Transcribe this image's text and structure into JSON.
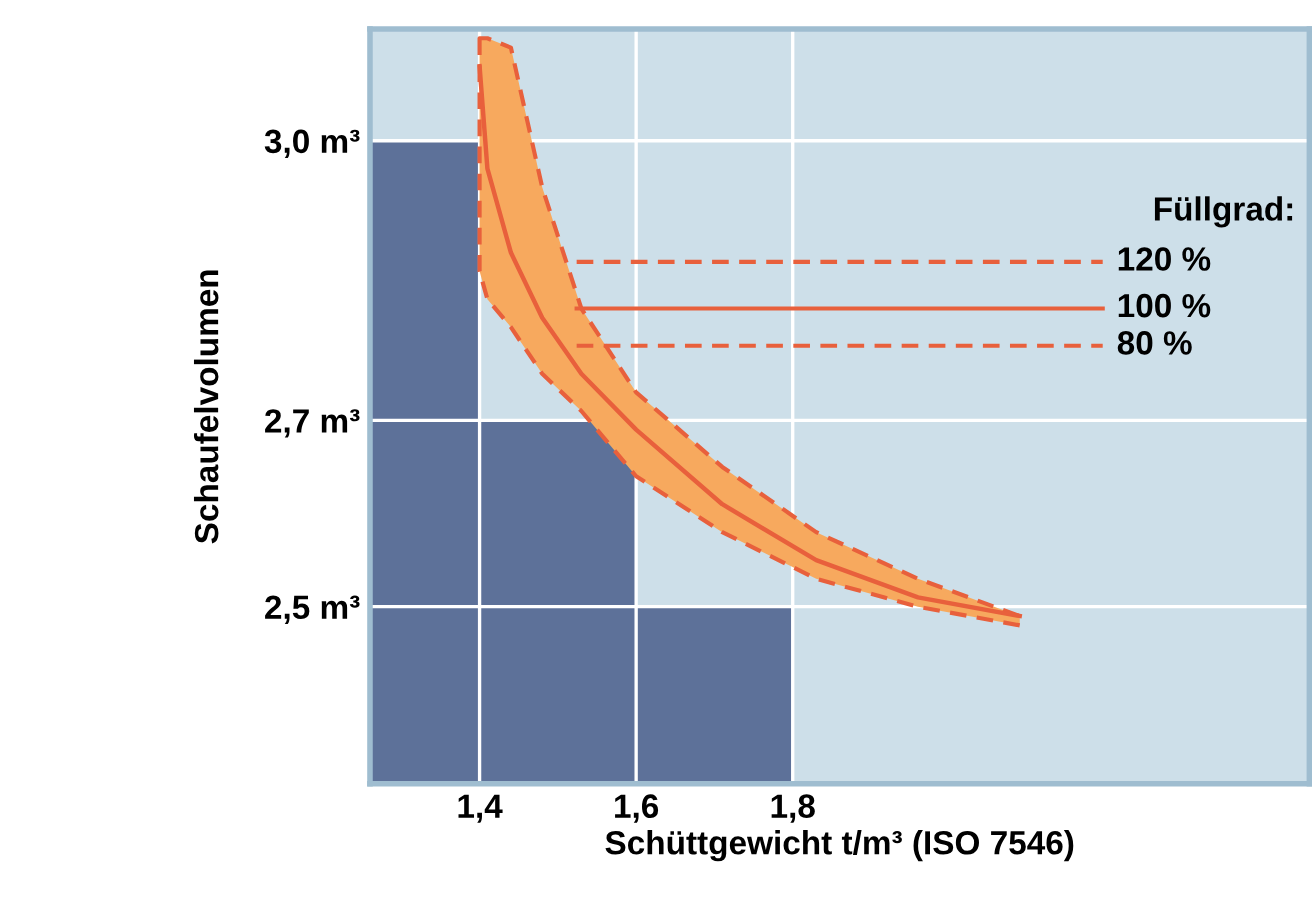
{
  "chart_data": {
    "type": "line",
    "xlabel": "Schüttgewicht t/m³ (ISO 7546)",
    "ylabel": "Schaufelvolumen",
    "legend_title": "Füllgrad:",
    "xlim": [
      1.26,
      2.46
    ],
    "ylim": [
      2.31,
      3.12
    ],
    "xticks": [
      {
        "value": 1.4,
        "label": "1,4"
      },
      {
        "value": 1.6,
        "label": "1,6"
      },
      {
        "value": 1.8,
        "label": "1,8"
      }
    ],
    "yticks": [
      {
        "value": 2.5,
        "label": "2,5 m³"
      },
      {
        "value": 2.7,
        "label": "2,7 m³"
      },
      {
        "value": 3.0,
        "label": "3,0 m³"
      }
    ],
    "grid": true,
    "series": [
      {
        "type": "bar",
        "color": "#5d7199",
        "x": [
          1.33,
          1.5,
          1.7
        ],
        "values": [
          3.0,
          2.7,
          2.5
        ]
      },
      {
        "color": "#e8603c",
        "x": [
          1.4,
          1.41,
          1.44,
          1.48,
          1.53,
          1.6,
          1.71,
          1.83,
          1.96,
          2.09
        ],
        "values": [
          3.08,
          2.97,
          2.88,
          2.81,
          2.75,
          2.69,
          2.61,
          2.55,
          2.51,
          2.49
        ],
        "lower": [
          2.86,
          2.83,
          2.8,
          2.75,
          2.71,
          2.64,
          2.58,
          2.53,
          2.5,
          2.48
        ],
        "upper": [
          3.11,
          3.11,
          3.1,
          2.95,
          2.82,
          2.73,
          2.65,
          2.58,
          2.53,
          2.49
        ]
      }
    ],
    "ref_lines": [
      {
        "axis": "y",
        "value": 2.87,
        "color": "#e8603c",
        "line_style": "dashed"
      },
      {
        "axis": "y",
        "value": 2.82,
        "color": "#e8603c",
        "line_style": "solid"
      },
      {
        "axis": "y",
        "value": 2.78,
        "color": "#e8603c",
        "line_style": "dashed"
      }
    ],
    "annotations": [
      "120 %",
      "100 %",
      "80 %"
    ]
  }
}
